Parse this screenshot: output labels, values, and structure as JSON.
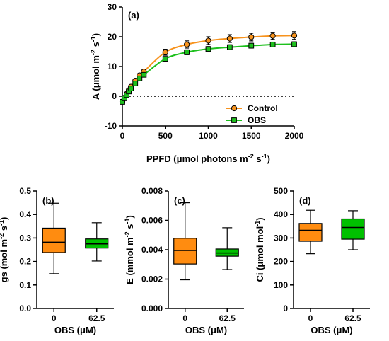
{
  "colors": {
    "control": "#F7931E",
    "obs": "#1DC01D",
    "control_box": "#FF8C10",
    "obs_box": "#00C000"
  },
  "chart_data": [
    {
      "type": "line",
      "panel": "(a)",
      "xlabel": "PPFD (μmol photons m⁻² s⁻¹)",
      "ylabel": "A (μmol m⁻² s⁻¹)",
      "xlim": [
        0,
        2000
      ],
      "ylim": [
        -10,
        30
      ],
      "xticks": [
        0,
        500,
        1000,
        1500,
        2000
      ],
      "yticks": [
        -10,
        0,
        10,
        20,
        30
      ],
      "grid": false,
      "legend_position": "bottom-right",
      "reference_line_y": 0,
      "series": [
        {
          "name": "Control",
          "marker": "circle",
          "x": [
            0,
            25,
            50,
            75,
            100,
            150,
            200,
            250,
            500,
            750,
            1000,
            1250,
            1500,
            1750,
            2000
          ],
          "y": [
            -1.8,
            -0.5,
            0.8,
            2.0,
            3.2,
            5.2,
            7.0,
            8.3,
            14.8,
            17.4,
            18.7,
            19.4,
            19.9,
            20.3,
            20.4
          ],
          "err": [
            0.4,
            0.4,
            0.5,
            0.5,
            0.5,
            0.6,
            0.6,
            0.7,
            1.0,
            1.2,
            1.3,
            1.3,
            1.3,
            1.2,
            1.3
          ]
        },
        {
          "name": "OBS",
          "marker": "square",
          "x": [
            0,
            25,
            50,
            75,
            100,
            150,
            200,
            250,
            500,
            750,
            1000,
            1250,
            1500,
            1750,
            2000
          ],
          "y": [
            -1.9,
            -0.7,
            0.4,
            1.6,
            2.6,
            4.3,
            6.0,
            7.2,
            12.6,
            14.8,
            15.9,
            16.5,
            17.0,
            17.4,
            17.5
          ],
          "err": [
            0.3,
            0.3,
            0.4,
            0.4,
            0.4,
            0.5,
            0.5,
            0.5,
            0.7,
            0.8,
            0.8,
            0.8,
            0.8,
            0.8,
            0.8
          ]
        }
      ]
    },
    {
      "type": "box",
      "panel": "(b)",
      "xlabel": "OBS (μM)",
      "ylabel": "gs (mol m⁻² s⁻¹)",
      "ylim": [
        0,
        0.5
      ],
      "yticks": [
        "0.0",
        "0.1",
        "0.2",
        "0.3",
        "0.4",
        "0.5"
      ],
      "categories": [
        "0",
        "62.5"
      ],
      "boxes": [
        {
          "min": 0.148,
          "q1": 0.238,
          "median": 0.282,
          "q3": 0.342,
          "max": 0.448
        },
        {
          "min": 0.202,
          "q1": 0.257,
          "median": 0.275,
          "q3": 0.296,
          "max": 0.365
        }
      ]
    },
    {
      "type": "box",
      "panel": "(c)",
      "xlabel": "OBS (μM)",
      "ylabel": "E (mmol m⁻² s⁻¹)",
      "ylim": [
        0,
        0.008
      ],
      "yticks": [
        "0.000",
        "0.002",
        "0.004",
        "0.006",
        "0.008"
      ],
      "categories": [
        "0",
        "62.5"
      ],
      "boxes": [
        {
          "min": 0.00195,
          "q1": 0.00303,
          "median": 0.00395,
          "q3": 0.00478,
          "max": 0.0072
        },
        {
          "min": 0.00265,
          "q1": 0.00356,
          "median": 0.00378,
          "q3": 0.00405,
          "max": 0.0055
        }
      ]
    },
    {
      "type": "box",
      "panel": "(d)",
      "xlabel": "OBS (μM)",
      "ylabel": "Ci (μmol mol⁻¹)",
      "ylim": [
        0,
        500
      ],
      "yticks": [
        "0",
        "100",
        "200",
        "300",
        "400",
        "500"
      ],
      "categories": [
        "0",
        "62.5"
      ],
      "boxes": [
        {
          "min": 233,
          "q1": 286,
          "median": 333,
          "q3": 362,
          "max": 418
        },
        {
          "min": 250,
          "q1": 295,
          "median": 345,
          "q3": 381,
          "max": 416
        }
      ]
    }
  ]
}
